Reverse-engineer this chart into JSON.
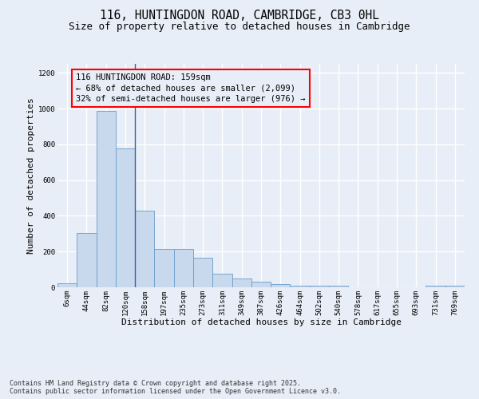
{
  "title": "116, HUNTINGDON ROAD, CAMBRIDGE, CB3 0HL",
  "subtitle": "Size of property relative to detached houses in Cambridge",
  "xlabel": "Distribution of detached houses by size in Cambridge",
  "ylabel": "Number of detached properties",
  "bar_color": "#c8d8ed",
  "bar_edge_color": "#6a9cc9",
  "vline_color": "#3a6090",
  "categories": [
    "6sqm",
    "44sqm",
    "82sqm",
    "120sqm",
    "158sqm",
    "197sqm",
    "235sqm",
    "273sqm",
    "311sqm",
    "349sqm",
    "387sqm",
    "426sqm",
    "464sqm",
    "502sqm",
    "540sqm",
    "578sqm",
    "617sqm",
    "655sqm",
    "693sqm",
    "731sqm",
    "769sqm"
  ],
  "values": [
    22,
    305,
    985,
    775,
    430,
    215,
    213,
    165,
    78,
    50,
    30,
    18,
    10,
    10,
    10,
    0,
    0,
    0,
    0,
    8,
    10
  ],
  "ylim": [
    0,
    1250
  ],
  "yticks": [
    0,
    200,
    400,
    600,
    800,
    1000,
    1200
  ],
  "vline_position": 3.5,
  "annotation_line1": "116 HUNTINGDON ROAD: 159sqm",
  "annotation_line2": "← 68% of detached houses are smaller (2,099)",
  "annotation_line3": "32% of semi-detached houses are larger (976) →",
  "footer_text": "Contains HM Land Registry data © Crown copyright and database right 2025.\nContains public sector information licensed under the Open Government Licence v3.0.",
  "background_color": "#e8eef7",
  "grid_color": "#ffffff",
  "title_fontsize": 10.5,
  "subtitle_fontsize": 9,
  "label_fontsize": 8,
  "tick_fontsize": 6.5,
  "annotation_fontsize": 7.5,
  "footer_fontsize": 6
}
